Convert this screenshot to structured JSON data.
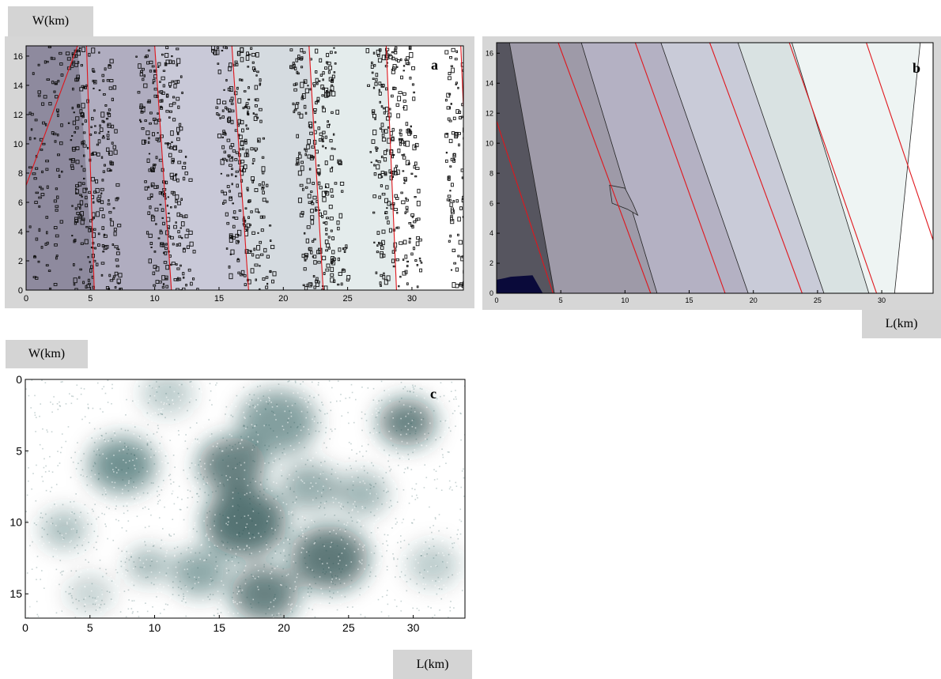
{
  "labels": {
    "w_km_a": "W(km)",
    "l_km_b": "L(km)",
    "w_km_c": "W(km)",
    "l_km_c": "L(km)"
  },
  "chart_data": [
    {
      "id": "a",
      "type": "heatmap",
      "panel_letter": "a",
      "x_ticks": [
        0,
        5,
        10,
        15,
        20,
        25,
        30
      ],
      "y_ticks": [
        0,
        2,
        4,
        6,
        8,
        10,
        12,
        14,
        16
      ],
      "xlim": [
        0,
        34
      ],
      "ylim": [
        0,
        16.7
      ],
      "y_direction": "up",
      "grid": false,
      "red_lines": [
        {
          "x_top": 4.0,
          "x_bottom": -3.0
        },
        {
          "x_top": 4.7,
          "x_bottom": 5.3
        },
        {
          "x_top": 10.0,
          "x_bottom": 11.3
        },
        {
          "x_top": 16.0,
          "x_bottom": 17.3
        },
        {
          "x_top": 22.0,
          "x_bottom": 23.1
        },
        {
          "x_top": 28.0,
          "x_bottom": 28.8
        },
        {
          "x_top": 33.8,
          "x_bottom": 34.6
        }
      ],
      "bands": [
        {
          "x_top": 0,
          "x_bottom": 0,
          "color": "#8e8a9e"
        },
        {
          "x_top": 4.0,
          "x_bottom": 5.3,
          "color": "#b0adc0"
        },
        {
          "x_top": 10.0,
          "x_bottom": 11.3,
          "color": "#c9c9d8"
        },
        {
          "x_top": 16.0,
          "x_bottom": 17.3,
          "color": "#d5dbe0"
        },
        {
          "x_top": 22.0,
          "x_bottom": 23.1,
          "color": "#e4ecec"
        },
        {
          "x_top": 28.0,
          "x_bottom": 28.8,
          "color": "#ffffff"
        }
      ]
    },
    {
      "id": "b",
      "type": "heatmap",
      "panel_letter": "b",
      "x_ticks": [
        0,
        5,
        10,
        15,
        20,
        25,
        30
      ],
      "y_ticks": [
        0,
        2,
        4,
        6,
        8,
        10,
        12,
        14,
        16
      ],
      "xlim": [
        0,
        34
      ],
      "ylim": [
        0,
        16.7
      ],
      "y_direction": "up",
      "grid": false,
      "red_lines": [
        {
          "x_top": -2.0,
          "x_bottom": 4.4
        },
        {
          "x_top": 4.8,
          "x_bottom": 12.0
        },
        {
          "x_top": 10.8,
          "x_bottom": 17.8
        },
        {
          "x_top": 16.6,
          "x_bottom": 23.8
        },
        {
          "x_top": 22.8,
          "x_bottom": 29.6
        },
        {
          "x_top": 28.8,
          "x_bottom": 35.4
        }
      ],
      "bands": [
        {
          "x_top": 0,
          "x_bottom": 0,
          "color": "#56555f"
        },
        {
          "x_top": 1.0,
          "x_bottom": 4.5,
          "color": "#9e9aa8"
        },
        {
          "x_top": 6.6,
          "x_bottom": 12.5,
          "color": "#b4b1c3"
        },
        {
          "x_top": 12.8,
          "x_bottom": 19.6,
          "color": "#c9cbd8"
        },
        {
          "x_top": 18.8,
          "x_bottom": 25.5,
          "color": "#d9e2e2"
        },
        {
          "x_top": 23.0,
          "x_bottom": 29.0,
          "color": "#eef4f3"
        },
        {
          "x_top": 33.0,
          "x_bottom": 31.0,
          "color": "#ffffff"
        }
      ]
    },
    {
      "id": "c",
      "type": "heatmap",
      "panel_letter": "c",
      "x_ticks": [
        0,
        5,
        10,
        15,
        20,
        25,
        30
      ],
      "y_ticks": [
        0,
        5,
        10,
        15
      ],
      "xlim": [
        0,
        34
      ],
      "ylim": [
        0,
        16.7
      ],
      "y_direction": "down",
      "grid": false,
      "colormap": [
        "#ffffff",
        "#0b3a3a"
      ],
      "blobs": [
        {
          "x": 17.0,
          "y": 10.0,
          "r": 3.2,
          "v": 0.95
        },
        {
          "x": 16.0,
          "y": 6.0,
          "r": 2.6,
          "v": 0.85
        },
        {
          "x": 23.5,
          "y": 12.5,
          "r": 3.0,
          "v": 0.9
        },
        {
          "x": 18.5,
          "y": 15.0,
          "r": 2.6,
          "v": 0.85
        },
        {
          "x": 19.5,
          "y": 3.0,
          "r": 3.0,
          "v": 0.65
        },
        {
          "x": 7.5,
          "y": 6.0,
          "r": 2.6,
          "v": 0.75
        },
        {
          "x": 29.5,
          "y": 3.0,
          "r": 2.2,
          "v": 0.85
        },
        {
          "x": 13.5,
          "y": 13.5,
          "r": 2.2,
          "v": 0.6
        },
        {
          "x": 9.5,
          "y": 13.0,
          "r": 1.6,
          "v": 0.5
        },
        {
          "x": 3.0,
          "y": 10.5,
          "r": 1.8,
          "v": 0.45
        },
        {
          "x": 26.0,
          "y": 8.0,
          "r": 2.0,
          "v": 0.5
        },
        {
          "x": 31.5,
          "y": 13.0,
          "r": 2.0,
          "v": 0.35
        },
        {
          "x": 11.0,
          "y": 1.0,
          "r": 2.0,
          "v": 0.35
        },
        {
          "x": 22.0,
          "y": 7.5,
          "r": 2.2,
          "v": 0.55
        },
        {
          "x": 5.0,
          "y": 15.0,
          "r": 1.8,
          "v": 0.3
        }
      ]
    }
  ]
}
